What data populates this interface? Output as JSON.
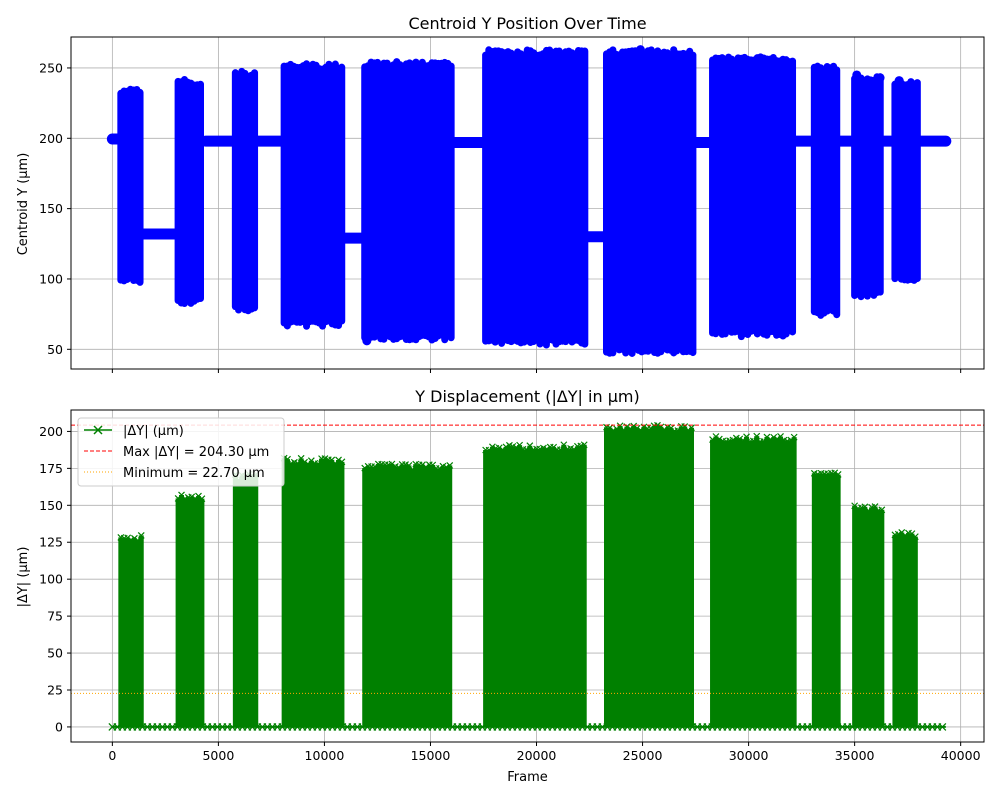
{
  "chart_data": [
    {
      "type": "scatter",
      "title": "Centroid Y Position Over Time",
      "xlabel": "",
      "ylabel": "Centroid Y (µm)",
      "xlim": [
        -1950,
        41100
      ],
      "ylim": [
        36,
        272
      ],
      "x_ticks": [
        0,
        5000,
        10000,
        15000,
        20000,
        25000,
        30000,
        35000,
        40000
      ],
      "y_ticks": [
        50,
        100,
        150,
        200,
        250
      ],
      "y_tick_labels": [
        "50",
        "100",
        "150",
        "200",
        "250"
      ],
      "grid": true,
      "baseline_segments": [
        {
          "x": [
            0,
            700
          ],
          "y": 199.5
        },
        {
          "x": [
            1300,
            3300
          ],
          "y": 132
        },
        {
          "x": [
            4400,
            5900
          ],
          "y": 198
        },
        {
          "x": [
            6800,
            8100
          ],
          "y": 198
        },
        {
          "x": [
            10800,
            11900
          ],
          "y": 129
        },
        {
          "x": [
            16000,
            17600
          ],
          "y": 197
        },
        {
          "x": [
            22400,
            23300
          ],
          "y": 130
        },
        {
          "x": [
            27400,
            28300
          ],
          "y": 197
        },
        {
          "x": [
            32200,
            33100
          ],
          "y": 198
        },
        {
          "x": [
            34300,
            35000
          ],
          "y": 198
        },
        {
          "x": [
            36300,
            36900
          ],
          "y": 198
        },
        {
          "x": [
            38000,
            39300
          ],
          "y": 198
        }
      ],
      "oscillation_bursts": [
        {
          "x": [
            400,
            1400
          ],
          "y": [
            97,
            236
          ]
        },
        {
          "x": [
            3100,
            4300
          ],
          "y": [
            82,
            242
          ]
        },
        {
          "x": [
            5800,
            6800
          ],
          "y": [
            77,
            248
          ]
        },
        {
          "x": [
            8100,
            10900
          ],
          "y": [
            66,
            253
          ]
        },
        {
          "x": [
            11900,
            16000
          ],
          "y": [
            56,
            255
          ]
        },
        {
          "x": [
            17600,
            22400
          ],
          "y": [
            53,
            263
          ]
        },
        {
          "x": [
            23300,
            27400
          ],
          "y": [
            47,
            263
          ]
        },
        {
          "x": [
            28300,
            32200
          ],
          "y": [
            59,
            258
          ]
        },
        {
          "x": [
            33100,
            34300
          ],
          "y": [
            74,
            252
          ]
        },
        {
          "x": [
            35000,
            36300
          ],
          "y": [
            87,
            245
          ]
        },
        {
          "x": [
            36900,
            38000
          ],
          "y": [
            99,
            241
          ]
        }
      ],
      "point_color": "#0000ff"
    },
    {
      "type": "scatter",
      "title": "Y Displacement (|ΔY| in µm)",
      "xlabel": "Frame",
      "ylabel": "|ΔY| (µm)",
      "xlim": [
        -1950,
        41100
      ],
      "ylim": [
        -10.2,
        214.5
      ],
      "x_ticks": [
        0,
        5000,
        10000,
        15000,
        20000,
        25000,
        30000,
        35000,
        40000
      ],
      "x_tick_labels": [
        "0",
        "5000",
        "10000",
        "15000",
        "20000",
        "25000",
        "30000",
        "35000",
        "40000"
      ],
      "y_ticks": [
        0,
        25,
        50,
        75,
        100,
        125,
        150,
        175,
        200
      ],
      "y_tick_labels": [
        "0",
        "25",
        "50",
        "75",
        "100",
        "125",
        "150",
        "175",
        "200"
      ],
      "grid": true,
      "bursts": [
        {
          "x": [
            400,
            1400
          ],
          "max": 130
        },
        {
          "x": [
            3100,
            4300
          ],
          "max": 157
        },
        {
          "x": [
            5800,
            6800
          ],
          "max": 171
        },
        {
          "x": [
            8100,
            10900
          ],
          "max": 182
        },
        {
          "x": [
            11900,
            16000
          ],
          "max": 178
        },
        {
          "x": [
            17600,
            22400
          ],
          "max": 191
        },
        {
          "x": [
            23300,
            27400
          ],
          "max": 204.3
        },
        {
          "x": [
            28300,
            32200
          ],
          "max": 197
        },
        {
          "x": [
            33100,
            34300
          ],
          "max": 174
        },
        {
          "x": [
            35000,
            36300
          ],
          "max": 150
        },
        {
          "x": [
            36900,
            38000
          ],
          "max": 132
        }
      ],
      "x_range": [
        0,
        39300
      ],
      "hlines": [
        {
          "y": 204.3,
          "color": "#ff0000",
          "style": "dashed"
        },
        {
          "y": 22.7,
          "color": "#ffa500",
          "style": "dotted"
        }
      ],
      "legend": {
        "position": "upper-left",
        "entries": [
          {
            "label": "|ΔY| (µm)",
            "color": "#008000",
            "marker": "x"
          },
          {
            "label": "Max |ΔY| = 204.30 µm",
            "color": "#ff0000",
            "style": "dashed"
          },
          {
            "label": "Minimum = 22.70 µm",
            "color": "#ffa500",
            "style": "dotted"
          }
        ]
      },
      "series_color": "#008000"
    }
  ]
}
